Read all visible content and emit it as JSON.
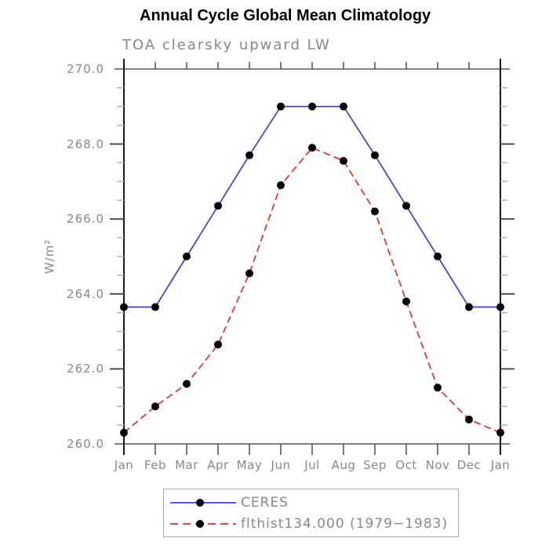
{
  "title": "Annual Cycle Global Mean Climatology",
  "subtitle": "TOA clearsky upward LW",
  "colors": {
    "ceres_line": "#3c3cee",
    "flthist_line": "#ee2b2b",
    "marker": "#000000",
    "frame_gray": "#828282",
    "axis_black": "#1a1a1a",
    "tick_major": "#4d4d4d",
    "tick_minor": "#b3b3b3",
    "text_gray": "#888888",
    "legend_border": "#a9a9a9"
  },
  "chart_data": {
    "type": "line",
    "title": "Annual Cycle Global Mean Climatology",
    "subtitle": "TOA clearsky upward LW",
    "xlabel": "",
    "ylabel": "W/m²",
    "ylim": [
      260.0,
      270.0
    ],
    "y_major_step": 2.0,
    "y_minor_step": 0.5,
    "grid": false,
    "legend_position": "bottom",
    "x_tick_labels": [
      "Jan",
      "Feb",
      "Mar",
      "Apr",
      "May",
      "Jun",
      "Jul",
      "Aug",
      "Sep",
      "Oct",
      "Nov",
      "Dec",
      "Jan"
    ],
    "y_tick_labels": [
      "270.0",
      "268.0",
      "266.0",
      "264.0",
      "262.0",
      "260.0"
    ],
    "series": [
      {
        "name": "CERES",
        "style": "solid",
        "color": "#3c3cee",
        "marker": "black-dot",
        "values": [
          263.65,
          263.65,
          265.0,
          266.35,
          267.7,
          269.0,
          269.0,
          269.0,
          267.7,
          266.35,
          265.0,
          263.65,
          263.65
        ]
      },
      {
        "name": "flthist134.000 (1979−1983)",
        "style": "dashed",
        "color": "#ee2b2b",
        "marker": "black-dot",
        "values": [
          260.3,
          261.0,
          261.6,
          262.65,
          264.55,
          266.9,
          267.9,
          267.55,
          266.2,
          263.8,
          261.5,
          260.65,
          260.3
        ]
      }
    ]
  },
  "legend": {
    "items": [
      {
        "label": "CERES"
      },
      {
        "label": "flthist134.000 (1979−1983)"
      }
    ]
  }
}
